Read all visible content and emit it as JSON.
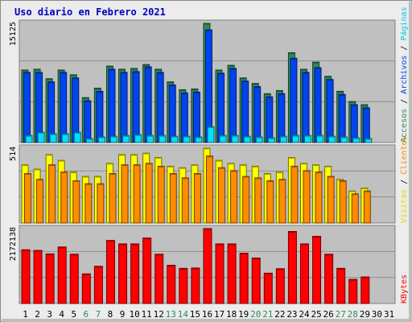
{
  "chart_data": {
    "type": "bar",
    "title": "Uso diario en Febrero 2021",
    "categories": [
      "1",
      "2",
      "3",
      "4",
      "5",
      "6",
      "7",
      "8",
      "9",
      "10",
      "11",
      "12",
      "13",
      "14",
      "15",
      "16",
      "17",
      "18",
      "19",
      "20",
      "21",
      "22",
      "23",
      "24",
      "25",
      "26",
      "27",
      "28",
      "29",
      "30",
      "31"
    ],
    "weekend_days": [
      "6",
      "7",
      "13",
      "14",
      "20",
      "21",
      "27",
      "28"
    ],
    "separator_label": "/",
    "panels": [
      {
        "name": "accesses-panel",
        "scale_label": "15125",
        "ymax": 15125,
        "series": [
          {
            "name": "Accesos",
            "color": "#2e8b57",
            "values": [
              9200,
              9300,
              8100,
              9200,
              8600,
              5700,
              6900,
              9700,
              9300,
              9400,
              9900,
              9300,
              7700,
              6700,
              6800,
              15125,
              9200,
              9800,
              8200,
              7500,
              6200,
              6600,
              11400,
              9300,
              10200,
              8400,
              6500,
              5200,
              4800,
              0,
              0
            ]
          },
          {
            "name": "Archivos",
            "color": "#0044ee",
            "values": [
              8900,
              8900,
              7700,
              8900,
              8200,
              5300,
              6500,
              9300,
              8900,
              9000,
              9600,
              8900,
              7300,
              6300,
              6400,
              14300,
              8800,
              9400,
              7800,
              7100,
              5800,
              6200,
              10700,
              8900,
              9500,
              8000,
              6100,
              4800,
              4400,
              0,
              0
            ]
          },
          {
            "name": "Páginas",
            "color": "#00e0ff",
            "values": [
              900,
              1300,
              1100,
              1100,
              1300,
              500,
              700,
              800,
              900,
              1000,
              900,
              900,
              800,
              800,
              700,
              2000,
              900,
              900,
              800,
              700,
              600,
              800,
              900,
              900,
              900,
              800,
              700,
              600,
              500,
              0,
              0
            ]
          }
        ]
      },
      {
        "name": "visits-panel",
        "scale_label": "514",
        "ymax": 514,
        "series": [
          {
            "name": "Visitas",
            "color": "#ffff00",
            "values": [
              400,
              370,
              470,
              430,
              350,
              320,
              320,
              410,
              470,
              470,
              480,
              450,
              390,
              380,
              400,
              514,
              430,
              410,
              400,
              390,
              340,
              350,
              450,
              410,
              400,
              390,
              300,
              220,
              240,
              0,
              0
            ]
          },
          {
            "name": "Clientes",
            "color": "#ff8c00",
            "values": [
              340,
              300,
              400,
              350,
              290,
              270,
              270,
              340,
              400,
              400,
              410,
              390,
              340,
              310,
              340,
              460,
              380,
              360,
              320,
              310,
              290,
              300,
              390,
              360,
              350,
              320,
              290,
              200,
              220,
              0,
              0
            ]
          }
        ]
      },
      {
        "name": "kbytes-panel",
        "scale_label": "2172138",
        "ymax": 2172138,
        "series": [
          {
            "name": "KBytes",
            "color": "#ff0000",
            "values": [
              1560000,
              1540000,
              1440000,
              1640000,
              1430000,
              860000,
              1080000,
              1830000,
              1730000,
              1730000,
              1900000,
              1430000,
              1110000,
              1020000,
              1030000,
              2172138,
              1730000,
              1730000,
              1460000,
              1320000,
              880000,
              1010000,
              2090000,
              1730000,
              1950000,
              1430000,
              1020000,
              700000,
              770000,
              0,
              0
            ]
          }
        ]
      }
    ],
    "legend": [
      {
        "label": "Accesos",
        "color": "#2e8b57"
      },
      {
        "label": "Archivos",
        "color": "#0044ee"
      },
      {
        "label": "Páginas",
        "color": "#00c8e8"
      },
      {
        "label": "Visitas",
        "color": "#e0e000"
      },
      {
        "label": "Clientes",
        "color": "#ff8c00"
      },
      {
        "label": "KBytes",
        "color": "#ff0000"
      }
    ]
  }
}
